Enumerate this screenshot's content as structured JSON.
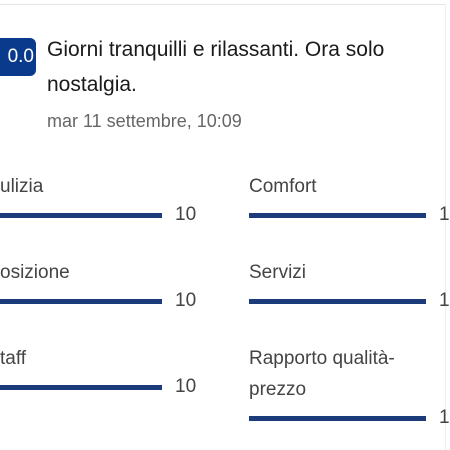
{
  "review": {
    "score": "0.0",
    "title_lines": [
      "Giorni tranquilli e rilassanti. Ora solo",
      "nostalgia."
    ],
    "date": "mar 11 settembre, 10:09"
  },
  "ratings": [
    {
      "label_lines": [
        "ulizia"
      ],
      "value": "10"
    },
    {
      "label_lines": [
        "Comfort"
      ],
      "value": "1"
    },
    {
      "label_lines": [
        "osizione"
      ],
      "value": "10"
    },
    {
      "label_lines": [
        "Servizi"
      ],
      "value": "1"
    },
    {
      "label_lines": [
        "taff"
      ],
      "value": "10"
    },
    {
      "label_lines": [
        "Rapporto qualità-",
        "prezzo"
      ],
      "value": "1"
    }
  ]
}
